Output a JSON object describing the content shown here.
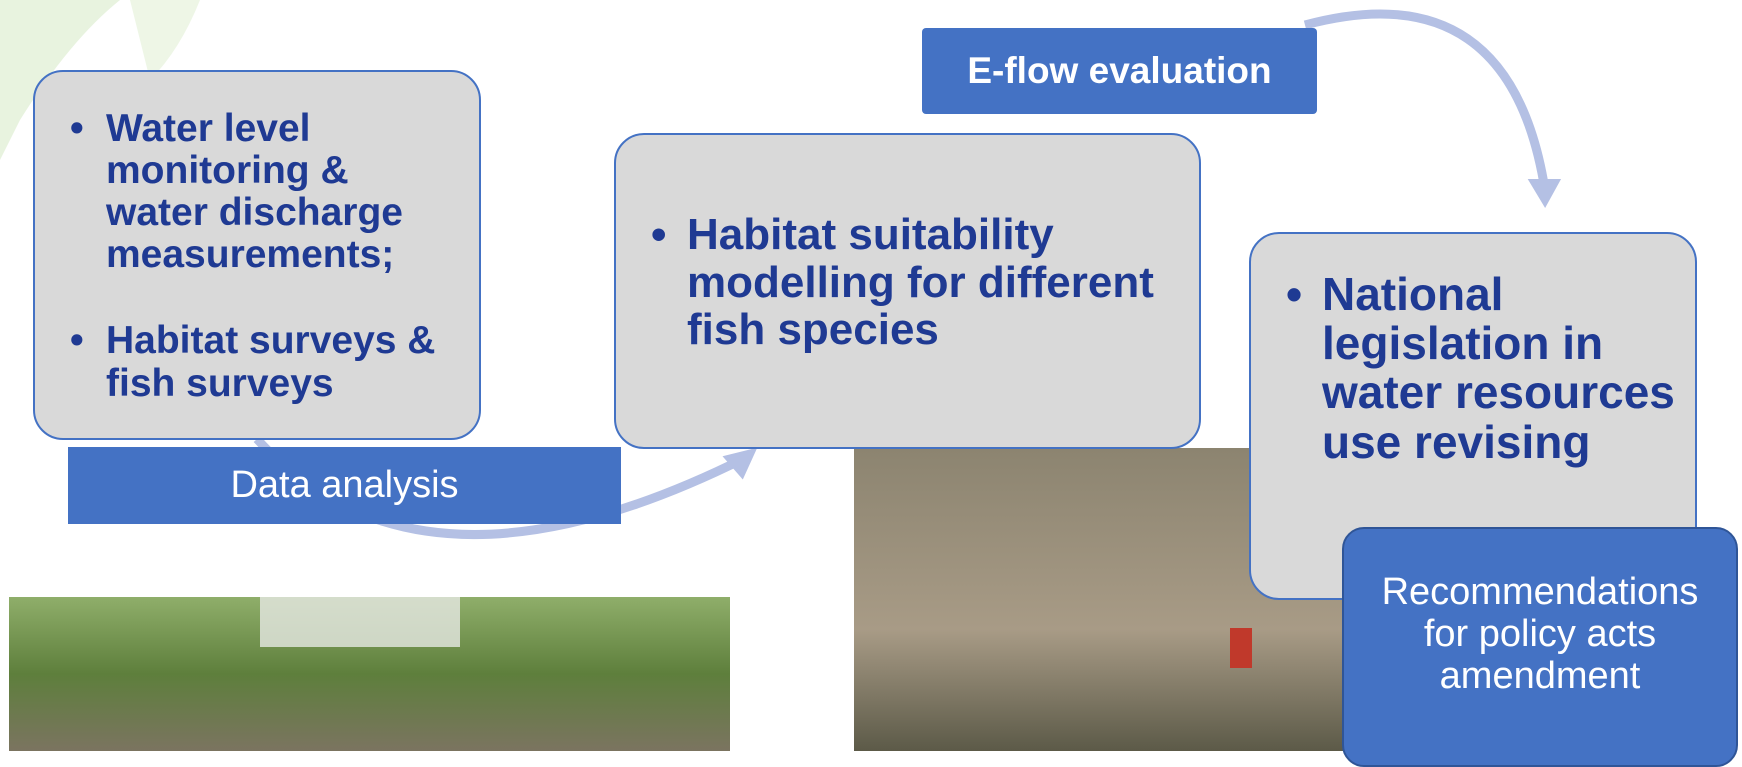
{
  "steps": [
    {
      "bullets": [
        "Water level monitoring & water discharge measurements;",
        "Habitat surveys & fish surveys"
      ],
      "label": "Data analysis"
    },
    {
      "bullets": [
        "Habitat suitability modelling for different fish species"
      ],
      "label": "E-flow evaluation"
    },
    {
      "bullets": [
        "National legislation in water resources use revising"
      ],
      "label": "Recommendations for policy acts amendment"
    }
  ]
}
